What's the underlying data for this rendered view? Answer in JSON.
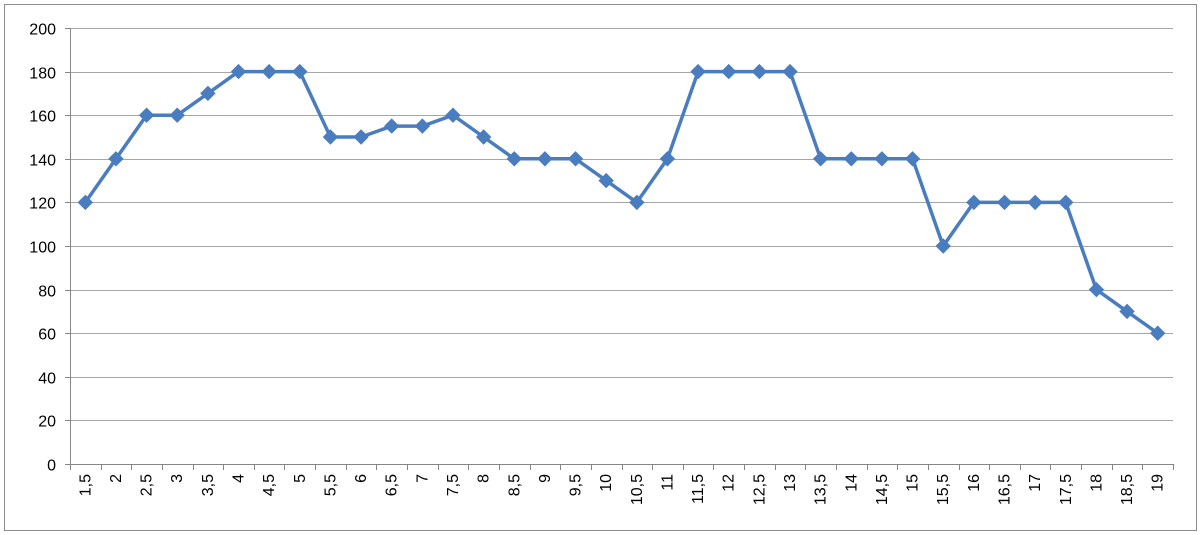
{
  "colors": {
    "series": "#4a7dbf",
    "grid": "#a6a6a6",
    "axis": "#868686",
    "border": "#8c8c8c",
    "text": "#000000",
    "background": "#ffffff"
  },
  "chart_data": {
    "type": "line",
    "title": "",
    "xlabel": "",
    "ylabel": "",
    "ylim": [
      0,
      200
    ],
    "y_ticks": [
      "0",
      "20",
      "40",
      "60",
      "80",
      "100",
      "120",
      "140",
      "160",
      "180",
      "200"
    ],
    "grid": true,
    "legend": "none",
    "marker": "diamond",
    "categories": [
      "1,5",
      "2",
      "2,5",
      "3",
      "3,5",
      "4",
      "4,5",
      "5",
      "5,5",
      "6",
      "6,5",
      "7",
      "7,5",
      "8",
      "8,5",
      "9",
      "9,5",
      "10",
      "10,5",
      "11",
      "11,5",
      "12",
      "12,5",
      "13",
      "13,5",
      "14",
      "14,5",
      "15",
      "15,5",
      "16",
      "16,5",
      "17",
      "17,5",
      "18",
      "18,5",
      "19"
    ],
    "series": [
      {
        "values": [
          120,
          140,
          160,
          160,
          170,
          180,
          180,
          180,
          150,
          150,
          155,
          155,
          160,
          150,
          140,
          140,
          140,
          130,
          120,
          140,
          180,
          180,
          180,
          180,
          140,
          140,
          140,
          140,
          100,
          120,
          120,
          120,
          120,
          80,
          70,
          60
        ]
      }
    ]
  }
}
